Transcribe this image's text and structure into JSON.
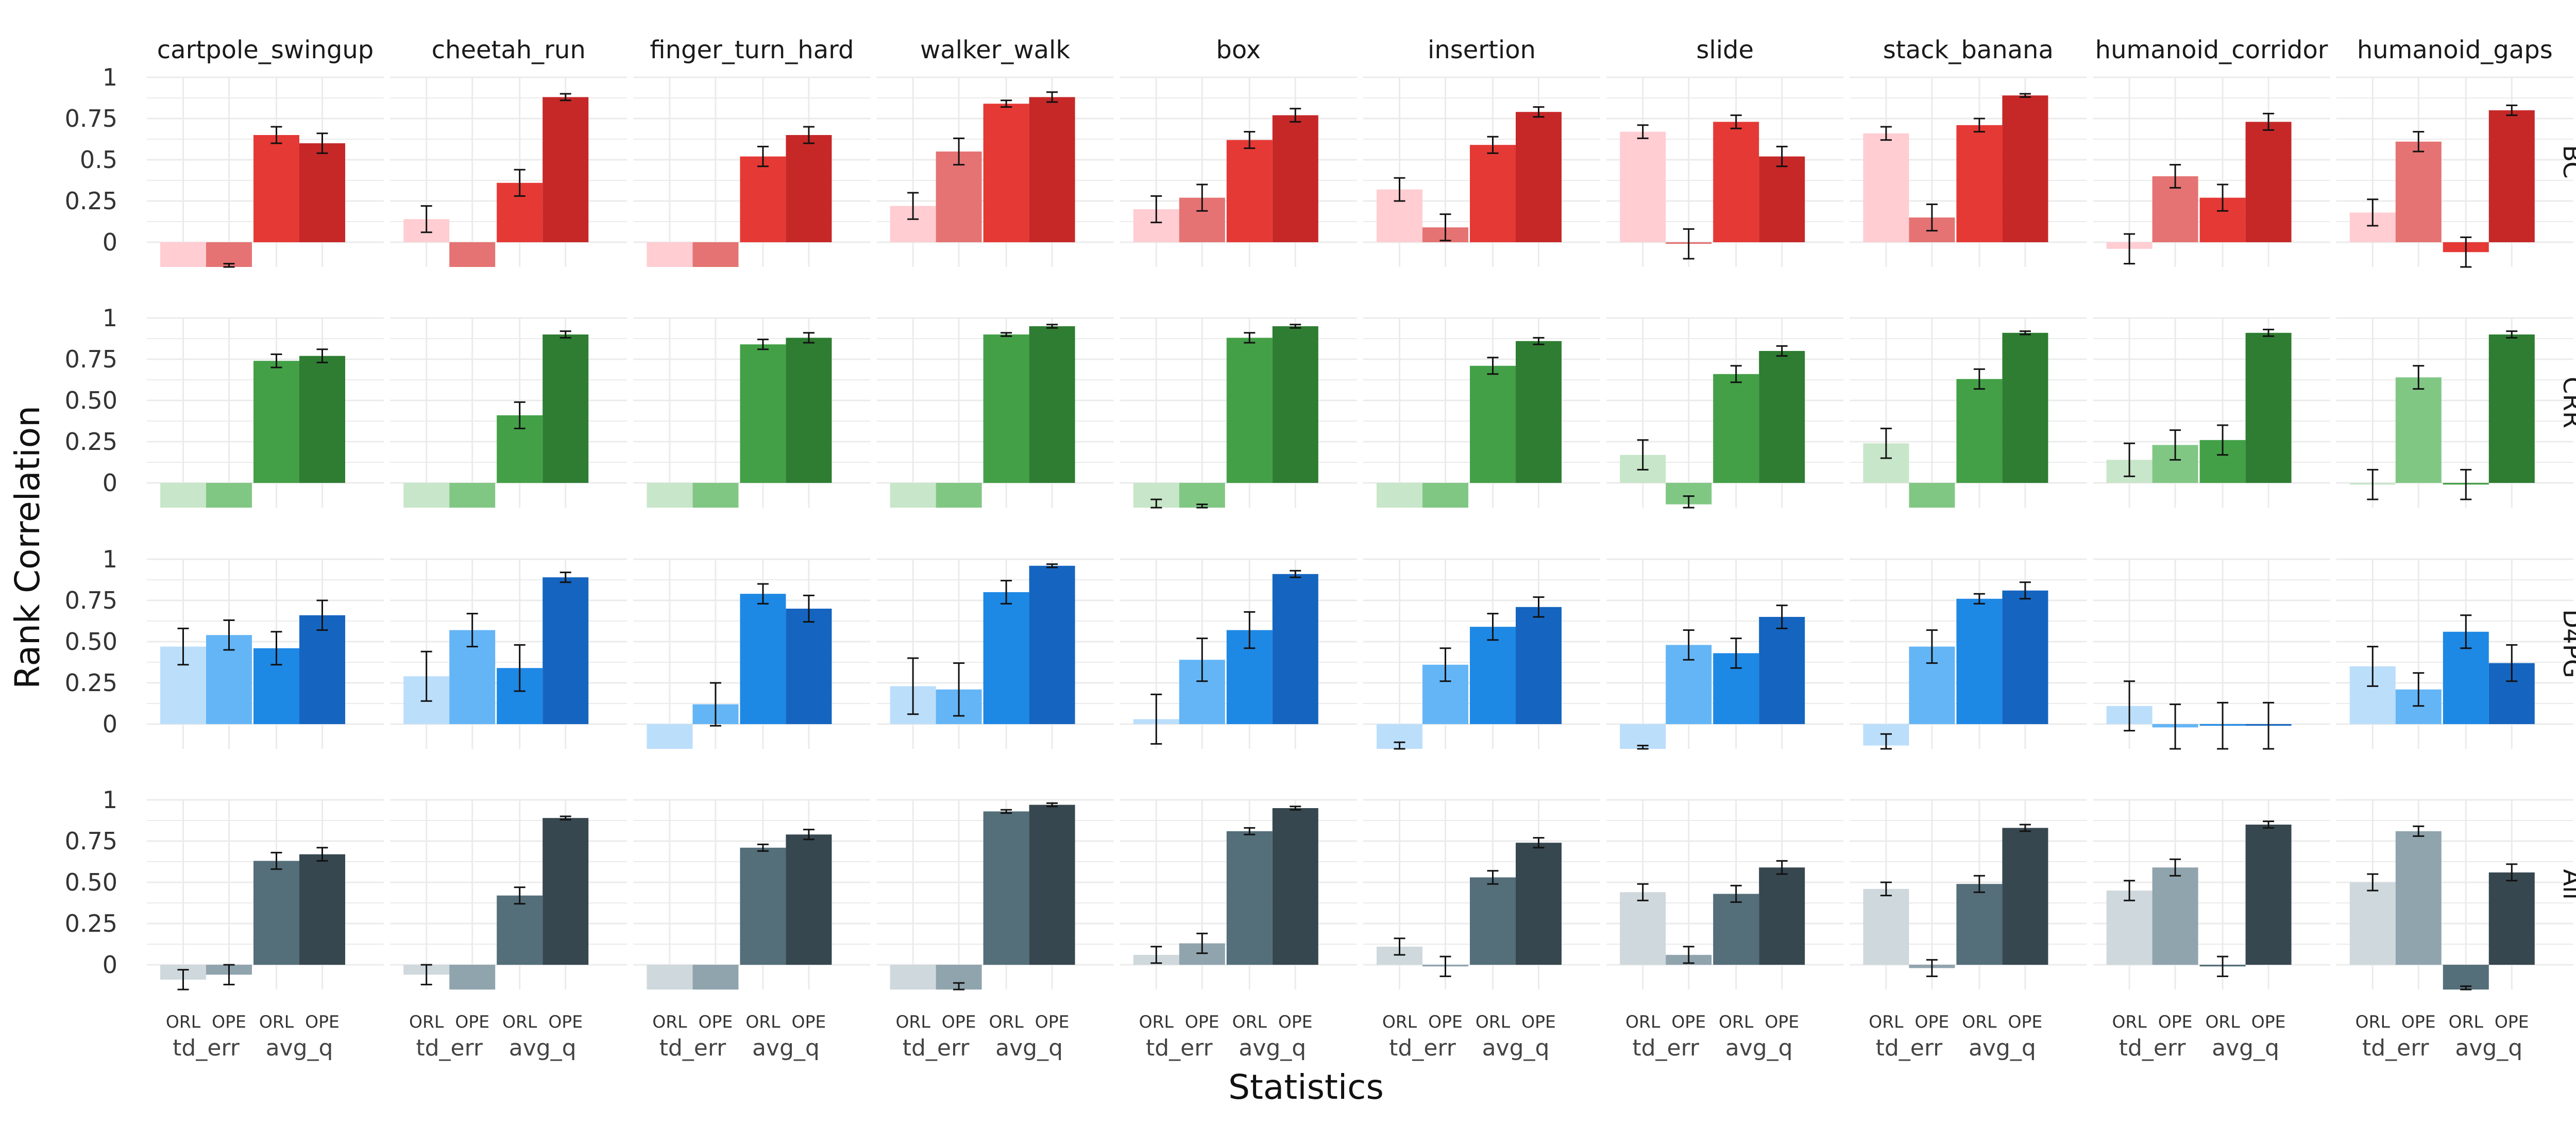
{
  "chart_data": {
    "type": "bar",
    "title": "",
    "xlabel": "Statistics",
    "ylabel": "Rank Correlation",
    "ylim": [
      -0.15,
      1.0
    ],
    "yticks": [
      "0",
      "0.25",
      "0.50",
      "0.75",
      "1"
    ],
    "ytick_values": [
      0,
      0.25,
      0.5,
      0.75,
      1.0
    ],
    "row_yticks": [
      [
        "0",
        "0.25",
        "0.5",
        "0.75",
        "1"
      ],
      [
        "0",
        "0.25",
        "0.50",
        "0.75",
        "1"
      ],
      [
        "0",
        "0.25",
        "0.50",
        "0.75",
        "1"
      ],
      [
        "0",
        "0.25",
        "0.50",
        "0.75",
        "1"
      ]
    ],
    "column_facets": [
      "cartpole_swingup",
      "cheetah_run",
      "finger_turn_hard",
      "walker_walk",
      "box",
      "insertion",
      "slide",
      "stack_banana",
      "humanoid_corridor",
      "humanoid_gaps"
    ],
    "row_facets": [
      "BC",
      "CRR",
      "D4PG",
      "All"
    ],
    "groups": [
      "td_err",
      "avg_q"
    ],
    "bar_labels": [
      "ORL",
      "OPE"
    ],
    "colors": {
      "BC": [
        "#ffcdd2",
        "#e57373",
        "#e53935",
        "#c62828"
      ],
      "CRR": [
        "#c8e6c9",
        "#81c784",
        "#43a047",
        "#2e7d32"
      ],
      "D4PG": [
        "#bbdefb",
        "#64b5f6",
        "#1e88e5",
        "#1565c0"
      ],
      "All": [
        "#cfd8dc",
        "#90a4ae",
        "#546e7a",
        "#37474f"
      ]
    },
    "series_order": [
      "td_err ORL",
      "td_err OPE",
      "avg_q ORL",
      "avg_q OPE"
    ],
    "values": {
      "BC": [
        [
          [
            -0.15,
            null
          ],
          [
            -0.15,
            0.02
          ],
          [
            0.65,
            0.05
          ],
          [
            0.6,
            0.06
          ]
        ],
        [
          [
            0.14,
            0.08
          ],
          [
            -0.15,
            null
          ],
          [
            0.36,
            0.08
          ],
          [
            0.88,
            0.02
          ]
        ],
        [
          [
            -0.15,
            null
          ],
          [
            -0.15,
            null
          ],
          [
            0.52,
            0.06
          ],
          [
            0.65,
            0.05
          ]
        ],
        [
          [
            0.22,
            0.08
          ],
          [
            0.55,
            0.08
          ],
          [
            0.84,
            0.02
          ],
          [
            0.88,
            0.03
          ]
        ],
        [
          [
            0.2,
            0.08
          ],
          [
            0.27,
            0.08
          ],
          [
            0.62,
            0.05
          ],
          [
            0.77,
            0.04
          ]
        ],
        [
          [
            0.32,
            0.07
          ],
          [
            0.09,
            0.08
          ],
          [
            0.59,
            0.05
          ],
          [
            0.79,
            0.03
          ]
        ],
        [
          [
            0.67,
            0.04
          ],
          [
            -0.01,
            0.09
          ],
          [
            0.73,
            0.04
          ],
          [
            0.52,
            0.06
          ]
        ],
        [
          [
            0.66,
            0.04
          ],
          [
            0.15,
            0.08
          ],
          [
            0.71,
            0.04
          ],
          [
            0.89,
            0.01
          ]
        ],
        [
          [
            -0.04,
            0.09
          ],
          [
            0.4,
            0.07
          ],
          [
            0.27,
            0.08
          ],
          [
            0.73,
            0.05
          ]
        ],
        [
          [
            0.18,
            0.08
          ],
          [
            0.61,
            0.06
          ],
          [
            -0.06,
            0.09
          ],
          [
            0.8,
            0.03
          ]
        ]
      ],
      "CRR": [
        [
          [
            -0.15,
            null
          ],
          [
            -0.15,
            null
          ],
          [
            0.74,
            0.04
          ],
          [
            0.77,
            0.04
          ]
        ],
        [
          [
            -0.15,
            null
          ],
          [
            -0.15,
            null
          ],
          [
            0.41,
            0.08
          ],
          [
            0.9,
            0.02
          ]
        ],
        [
          [
            -0.15,
            null
          ],
          [
            -0.15,
            null
          ],
          [
            0.84,
            0.03
          ],
          [
            0.88,
            0.03
          ]
        ],
        [
          [
            -0.15,
            null
          ],
          [
            -0.15,
            null
          ],
          [
            0.9,
            0.01
          ],
          [
            0.95,
            0.01
          ]
        ],
        [
          [
            -0.15,
            0.05
          ],
          [
            -0.15,
            0.02
          ],
          [
            0.88,
            0.03
          ],
          [
            0.95,
            0.01
          ]
        ],
        [
          [
            -0.15,
            null
          ],
          [
            -0.15,
            null
          ],
          [
            0.71,
            0.05
          ],
          [
            0.86,
            0.02
          ]
        ],
        [
          [
            0.17,
            0.09
          ],
          [
            -0.13,
            0.05
          ],
          [
            0.66,
            0.05
          ],
          [
            0.8,
            0.03
          ]
        ],
        [
          [
            0.24,
            0.09
          ],
          [
            -0.15,
            null
          ],
          [
            0.63,
            0.06
          ],
          [
            0.91,
            0.01
          ]
        ],
        [
          [
            0.14,
            0.1
          ],
          [
            0.23,
            0.09
          ],
          [
            0.26,
            0.09
          ],
          [
            0.91,
            0.02
          ]
        ],
        [
          [
            -0.01,
            0.09
          ],
          [
            0.64,
            0.07
          ],
          [
            -0.01,
            0.09
          ],
          [
            0.9,
            0.02
          ]
        ]
      ],
      "D4PG": [
        [
          [
            0.47,
            0.11
          ],
          [
            0.54,
            0.09
          ],
          [
            0.46,
            0.1
          ],
          [
            0.66,
            0.09
          ]
        ],
        [
          [
            0.29,
            0.15
          ],
          [
            0.57,
            0.1
          ],
          [
            0.34,
            0.14
          ],
          [
            0.89,
            0.03
          ]
        ],
        [
          [
            -0.15,
            null
          ],
          [
            0.12,
            0.13
          ],
          [
            0.79,
            0.06
          ],
          [
            0.7,
            0.08
          ]
        ],
        [
          [
            0.23,
            0.17
          ],
          [
            0.21,
            0.16
          ],
          [
            0.8,
            0.07
          ],
          [
            0.96,
            0.01
          ]
        ],
        [
          [
            0.03,
            0.15
          ],
          [
            0.39,
            0.13
          ],
          [
            0.57,
            0.11
          ],
          [
            0.91,
            0.02
          ]
        ],
        [
          [
            -0.15,
            0.04
          ],
          [
            0.36,
            0.1
          ],
          [
            0.59,
            0.08
          ],
          [
            0.71,
            0.06
          ]
        ],
        [
          [
            -0.15,
            0.02
          ],
          [
            0.48,
            0.09
          ],
          [
            0.43,
            0.09
          ],
          [
            0.65,
            0.07
          ]
        ],
        [
          [
            -0.13,
            0.07
          ],
          [
            0.47,
            0.1
          ],
          [
            0.76,
            0.03
          ],
          [
            0.81,
            0.05
          ]
        ],
        [
          [
            0.11,
            0.15
          ],
          [
            -0.02,
            0.14
          ],
          [
            -0.01,
            0.14
          ],
          [
            -0.01,
            0.14
          ]
        ],
        [
          [
            0.35,
            0.12
          ],
          [
            0.21,
            0.1
          ],
          [
            0.56,
            0.1
          ],
          [
            0.37,
            0.11
          ]
        ]
      ],
      "All": [
        [
          [
            -0.09,
            0.06
          ],
          [
            -0.06,
            0.06
          ],
          [
            0.63,
            0.05
          ],
          [
            0.67,
            0.04
          ]
        ],
        [
          [
            -0.06,
            0.06
          ],
          [
            -0.15,
            null
          ],
          [
            0.42,
            0.05
          ],
          [
            0.89,
            0.01
          ]
        ],
        [
          [
            -0.15,
            null
          ],
          [
            -0.15,
            null
          ],
          [
            0.71,
            0.02
          ],
          [
            0.79,
            0.03
          ]
        ],
        [
          [
            -0.15,
            null
          ],
          [
            -0.15,
            0.04
          ],
          [
            0.93,
            0.01
          ],
          [
            0.97,
            0.01
          ]
        ],
        [
          [
            0.06,
            0.05
          ],
          [
            0.13,
            0.06
          ],
          [
            0.81,
            0.02
          ],
          [
            0.95,
            0.01
          ]
        ],
        [
          [
            0.11,
            0.05
          ],
          [
            -0.01,
            0.06
          ],
          [
            0.53,
            0.04
          ],
          [
            0.74,
            0.03
          ]
        ],
        [
          [
            0.44,
            0.05
          ],
          [
            0.06,
            0.05
          ],
          [
            0.43,
            0.05
          ],
          [
            0.59,
            0.04
          ]
        ],
        [
          [
            0.46,
            0.04
          ],
          [
            -0.02,
            0.05
          ],
          [
            0.49,
            0.05
          ],
          [
            0.83,
            0.02
          ]
        ],
        [
          [
            0.45,
            0.06
          ],
          [
            0.59,
            0.05
          ],
          [
            -0.01,
            0.06
          ],
          [
            0.85,
            0.02
          ]
        ],
        [
          [
            0.5,
            0.05
          ],
          [
            0.81,
            0.03
          ],
          [
            -0.15,
            0.02
          ],
          [
            0.56,
            0.05
          ]
        ]
      ]
    }
  }
}
